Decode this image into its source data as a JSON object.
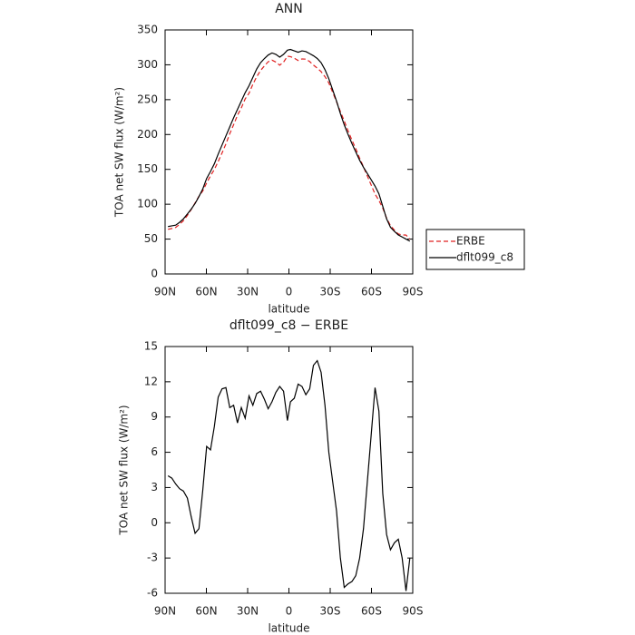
{
  "chart_data": [
    {
      "type": "line",
      "title": "ANN",
      "xlabel": "latitude",
      "ylabel": "TOA net SW flux (W/m²)",
      "x": [
        87.9,
        85.1,
        82.3,
        79.5,
        76.7,
        73.8,
        71.0,
        68.2,
        65.4,
        62.6,
        59.8,
        57.0,
        54.2,
        51.4,
        48.6,
        45.8,
        43.0,
        40.2,
        37.4,
        34.6,
        31.8,
        29.0,
        26.2,
        23.4,
        20.6,
        17.8,
        15.1,
        12.3,
        9.5,
        6.7,
        3.9,
        1.1,
        -1.1,
        -3.9,
        -6.7,
        -9.5,
        -12.3,
        -15.1,
        -17.8,
        -20.6,
        -23.4,
        -26.2,
        -29.0,
        -31.8,
        -34.6,
        -37.4,
        -40.2,
        -43.0,
        -45.8,
        -48.6,
        -51.4,
        -54.2,
        -57.0,
        -59.8,
        -62.6,
        -65.4,
        -68.2,
        -71.0,
        -73.8,
        -76.7,
        -79.5,
        -82.3,
        -85.1,
        -87.9
      ],
      "series": [
        {
          "name": "ERBE",
          "color": "#e02020",
          "style": "dashed",
          "values": [
            64,
            65.2,
            66.7,
            71.1,
            76.3,
            83.9,
            92.5,
            101.9,
            111.5,
            119.2,
            130.5,
            140.8,
            149.8,
            161.3,
            173.6,
            186.5,
            201.2,
            214,
            227.5,
            238.2,
            251.1,
            259.2,
            272,
            283,
            291.8,
            298.5,
            304.3,
            306.7,
            303.9,
            299.4,
            303.8,
            312.3,
            311.7,
            309.4,
            306.2,
            308.4,
            308.1,
            304.6,
            299.6,
            295.2,
            290.2,
            283,
            274,
            260.5,
            247,
            233,
            219.5,
            205.2,
            192,
            179.5,
            166,
            153.5,
            140.5,
            127.5,
            114.5,
            105.5,
            94.5,
            80,
            69.3,
            62.7,
            57.4,
            56,
            55.8,
            50
          ]
        },
        {
          "name": "dflt099_c8",
          "color": "#000000",
          "style": "solid",
          "values": [
            68,
            69,
            70,
            74,
            79,
            86,
            93,
            101,
            111,
            122,
            137,
            147,
            158,
            172,
            185,
            198,
            211,
            224,
            236,
            248,
            260,
            270,
            282,
            294,
            303,
            309,
            314,
            317,
            315,
            311,
            315,
            321,
            322,
            320,
            318,
            320,
            319,
            316,
            313,
            309,
            303,
            293,
            280,
            264,
            248,
            230,
            214,
            200,
            187,
            175,
            163,
            153,
            144,
            135,
            126,
            115,
            97,
            79,
            67,
            61,
            56,
            53,
            50,
            47
          ]
        }
      ],
      "xlim": [
        90,
        -90
      ],
      "xticks": [
        {
          "value": 90,
          "label": "90N"
        },
        {
          "value": 60,
          "label": "60N"
        },
        {
          "value": 30,
          "label": "30N"
        },
        0,
        {
          "value": -30,
          "label": "30S"
        },
        {
          "value": -60,
          "label": "60S"
        },
        {
          "value": -90,
          "label": "90S"
        }
      ],
      "ylim": [
        0,
        350
      ],
      "yticks": [
        0,
        50,
        100,
        150,
        200,
        250,
        300,
        350
      ],
      "legend": "right"
    },
    {
      "type": "line",
      "title": "dflt099_c8 − ERBE",
      "xlabel": "latitude",
      "ylabel": "TOA net SW flux (W/m²)",
      "x": [
        87.9,
        85.1,
        82.3,
        79.5,
        76.7,
        73.8,
        71.0,
        68.2,
        65.4,
        62.6,
        59.8,
        57.0,
        54.2,
        51.4,
        48.6,
        45.8,
        43.0,
        40.2,
        37.4,
        34.6,
        31.8,
        29.0,
        26.2,
        23.4,
        20.6,
        17.8,
        15.1,
        12.3,
        9.5,
        6.7,
        3.9,
        1.1,
        -1.1,
        -3.9,
        -6.7,
        -9.5,
        -12.3,
        -15.1,
        -17.8,
        -20.6,
        -23.4,
        -26.2,
        -29.0,
        -31.8,
        -34.6,
        -37.4,
        -40.2,
        -43.0,
        -45.8,
        -48.6,
        -51.4,
        -54.2,
        -57.0,
        -59.8,
        -62.6,
        -65.4,
        -68.2,
        -71.0,
        -73.8,
        -76.7,
        -79.5,
        -82.3,
        -85.1,
        -87.9
      ],
      "values": [
        4.0,
        3.8,
        3.3,
        2.9,
        2.7,
        2.1,
        0.5,
        -0.9,
        -0.5,
        2.8,
        6.5,
        6.2,
        8.2,
        10.7,
        11.4,
        11.5,
        9.8,
        10.0,
        8.5,
        9.8,
        8.9,
        10.8,
        10.0,
        11.0,
        11.2,
        10.5,
        9.7,
        10.3,
        11.1,
        11.6,
        11.2,
        8.7,
        10.3,
        10.6,
        11.8,
        11.6,
        10.9,
        11.4,
        13.4,
        13.8,
        12.8,
        10.0,
        6.0,
        3.5,
        1.0,
        -3.0,
        -5.5,
        -5.2,
        -5.0,
        -4.5,
        -3.0,
        -0.5,
        3.5,
        7.5,
        11.5,
        9.5,
        2.5,
        -1.0,
        -2.3,
        -1.7,
        -1.4,
        -3.0,
        -5.8,
        -3.0
      ],
      "color": "#000000",
      "xlim": [
        90,
        -90
      ],
      "xticks": [
        {
          "value": 90,
          "label": "90N"
        },
        {
          "value": 60,
          "label": "60N"
        },
        {
          "value": 30,
          "label": "30N"
        },
        0,
        {
          "value": -30,
          "label": "30S"
        },
        {
          "value": -60,
          "label": "60S"
        },
        {
          "value": -90,
          "label": "90S"
        }
      ],
      "ylim": [
        -6,
        15
      ],
      "yticks": [
        -6,
        -3,
        0,
        3,
        6,
        9,
        12,
        15
      ]
    }
  ]
}
